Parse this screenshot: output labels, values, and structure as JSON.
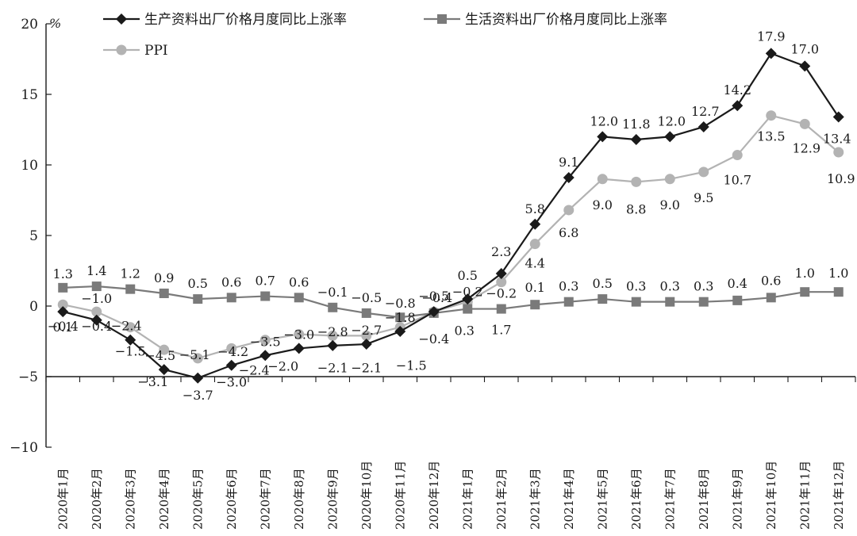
{
  "chart_data": {
    "type": "line",
    "unit": "%",
    "ylim": [
      -10,
      20
    ],
    "yticks": [
      -10,
      -5,
      0,
      5,
      10,
      15,
      20
    ],
    "grid": false,
    "legend_position": "top",
    "categories": [
      "2020年1月",
      "2020年2月",
      "2020年3月",
      "2020年4月",
      "2020年5月",
      "2020年6月",
      "2020年7月",
      "2020年8月",
      "2020年9月",
      "2020年10月",
      "2020年11月",
      "2020年12月",
      "2021年1月",
      "2021年2月",
      "2021年3月",
      "2021年4月",
      "2021年5月",
      "2021年6月",
      "2021年7月",
      "2021年8月",
      "2021年9月",
      "2021年10月",
      "2021年11月",
      "2021年12月"
    ],
    "series": [
      {
        "name": "生产资料出厂价格月度同比上涨率",
        "color": "#1a1a1a",
        "marker": "diamond",
        "values": [
          -0.4,
          -1.0,
          -2.4,
          -4.5,
          -5.1,
          -4.2,
          -3.5,
          -3.0,
          -2.8,
          -2.7,
          -1.8,
          -0.4,
          0.5,
          2.3,
          5.8,
          9.1,
          12.0,
          11.8,
          12.0,
          12.7,
          14.2,
          17.9,
          17.0,
          13.4
        ]
      },
      {
        "name": "生活资料出厂价格月度同比上涨率",
        "color": "#7a7a7a",
        "marker": "square",
        "values": [
          1.3,
          1.4,
          1.2,
          0.9,
          0.5,
          0.6,
          0.7,
          0.6,
          -0.1,
          -0.5,
          -0.8,
          -0.5,
          -0.2,
          -0.2,
          0.1,
          0.3,
          0.5,
          0.3,
          0.3,
          0.3,
          0.4,
          0.6,
          1.0,
          1.0
        ]
      },
      {
        "name": "PPI",
        "color": "#b3b3b3",
        "marker": "circle",
        "values": [
          0.1,
          -0.4,
          -1.5,
          -3.1,
          -3.7,
          -3.0,
          -2.4,
          -2.0,
          -2.1,
          -2.1,
          -1.5,
          -0.4,
          0.3,
          1.7,
          4.4,
          6.8,
          9.0,
          8.8,
          9.0,
          9.5,
          10.7,
          13.5,
          12.9,
          10.9
        ]
      }
    ],
    "data_labels": [
      {
        "text": "0.4",
        "series": 0,
        "i": 0
      },
      {
        "text": "1.0",
        "series": 0,
        "i": 1
      },
      {
        "text": "2.4",
        "series": 0,
        "i": 2
      },
      {
        "text": "4.5",
        "series": 0,
        "i": 3
      },
      {
        "text": "5.1",
        "series": 0,
        "i": 4
      },
      {
        "text": "4.2",
        "series": 0,
        "i": 5
      },
      {
        "text": "3.5",
        "series": 0,
        "i": 6
      },
      {
        "text": "3.0",
        "series": 0,
        "i": 7
      },
      {
        "text": "2.8",
        "series": 0,
        "i": 8
      },
      {
        "text": "2.7",
        "series": 0,
        "i": 9
      },
      {
        "text": "1.8",
        "series": 0,
        "i": 10
      },
      {
        "text": "0.4",
        "series": 0,
        "i": 11
      },
      {
        "text": "0.5",
        "series": 0,
        "i": 12
      },
      {
        "text": "2.3",
        "series": 0,
        "i": 13
      },
      {
        "text": "5.8",
        "series": 0,
        "i": 14
      },
      {
        "text": "9.1",
        "series": 0,
        "i": 15
      },
      {
        "text": "12.0",
        "series": 0,
        "i": 16
      },
      {
        "text": "11.8",
        "series": 0,
        "i": 17
      },
      {
        "text": "12.0",
        "series": 0,
        "i": 18
      },
      {
        "text": "12.7",
        "series": 0,
        "i": 19
      },
      {
        "text": "14.2",
        "series": 0,
        "i": 20
      },
      {
        "text": "17.9",
        "series": 0,
        "i": 21
      },
      {
        "text": "17.0",
        "series": 0,
        "i": 22
      },
      {
        "text": "13.4",
        "series": 0,
        "i": 23
      },
      {
        "text": "1.3",
        "series": 1,
        "i": 0
      },
      {
        "text": "1.4",
        "series": 1,
        "i": 1
      },
      {
        "text": "1.2",
        "series": 1,
        "i": 2
      },
      {
        "text": "0.9",
        "series": 1,
        "i": 3
      },
      {
        "text": "0.5",
        "series": 1,
        "i": 4
      },
      {
        "text": "0.6",
        "series": 1,
        "i": 5
      },
      {
        "text": "0.7",
        "series": 1,
        "i": 6
      },
      {
        "text": "0.6",
        "series": 1,
        "i": 7
      },
      {
        "text": "0.1",
        "series": 1,
        "i": 8
      },
      {
        "text": "0.5",
        "series": 1,
        "i": 9
      },
      {
        "text": "0.8",
        "series": 1,
        "i": 10
      },
      {
        "text": "0.5",
        "series": 1,
        "i": 11
      },
      {
        "text": "0.2",
        "series": 1,
        "i": 12
      },
      {
        "text": "0.2",
        "series": 1,
        "i": 13
      },
      {
        "text": "0.1",
        "series": 1,
        "i": 14
      },
      {
        "text": "0.3",
        "series": 1,
        "i": 15
      },
      {
        "text": "0.5",
        "series": 1,
        "i": 16
      },
      {
        "text": "0.3",
        "series": 1,
        "i": 17
      },
      {
        "text": "0.3",
        "series": 1,
        "i": 18
      },
      {
        "text": "0.3",
        "series": 1,
        "i": 19
      },
      {
        "text": "0.4",
        "series": 1,
        "i": 20
      },
      {
        "text": "0.6",
        "series": 1,
        "i": 21
      },
      {
        "text": "1.0",
        "series": 1,
        "i": 22
      },
      {
        "text": "1.0",
        "series": 1,
        "i": 23
      },
      {
        "text": "0.1",
        "series": 2,
        "i": 0
      },
      {
        "text": "0.4",
        "series": 2,
        "i": 1
      },
      {
        "text": "1.5",
        "series": 2,
        "i": 2
      },
      {
        "text": "3.1",
        "series": 2,
        "i": 3
      },
      {
        "text": "3.7",
        "series": 2,
        "i": 4
      },
      {
        "text": "3.0",
        "series": 2,
        "i": 5
      },
      {
        "text": "2.4",
        "series": 2,
        "i": 6
      },
      {
        "text": "2.0",
        "series": 2,
        "i": 7
      },
      {
        "text": "2.1",
        "series": 2,
        "i": 8
      },
      {
        "text": "2.1",
        "series": 2,
        "i": 9
      },
      {
        "text": "1.5",
        "series": 2,
        "i": 10
      },
      {
        "text": "0.4",
        "series": 2,
        "i": 11
      },
      {
        "text": "0.3",
        "series": 2,
        "i": 12
      },
      {
        "text": "1.7",
        "series": 2,
        "i": 13
      },
      {
        "text": "4.4",
        "series": 2,
        "i": 14
      },
      {
        "text": "6.8",
        "series": 2,
        "i": 15
      },
      {
        "text": "9.0",
        "series": 2,
        "i": 16
      },
      {
        "text": "8.8",
        "series": 2,
        "i": 17
      },
      {
        "text": "9.0",
        "series": 2,
        "i": 18
      },
      {
        "text": "9.5",
        "series": 2,
        "i": 19
      },
      {
        "text": "10.7",
        "series": 2,
        "i": 20
      },
      {
        "text": "13.5",
        "series": 2,
        "i": 21
      },
      {
        "text": "12.9",
        "series": 2,
        "i": 22
      },
      {
        "text": "10.9",
        "series": 2,
        "i": 23
      }
    ]
  }
}
